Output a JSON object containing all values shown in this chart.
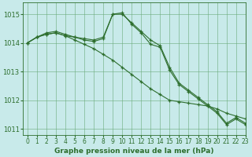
{
  "background_color": "#c8eaea",
  "grid_color": "#6aaa7a",
  "line_color": "#2d6e2d",
  "title": "Graphe pression niveau de la mer (hPa)",
  "xlim": [
    -0.5,
    23
  ],
  "ylim": [
    1010.8,
    1015.4
  ],
  "yticks": [
    1011,
    1012,
    1013,
    1014,
    1015
  ],
  "xticks": [
    0,
    1,
    2,
    3,
    4,
    5,
    6,
    7,
    8,
    9,
    10,
    11,
    12,
    13,
    14,
    15,
    16,
    17,
    18,
    19,
    20,
    21,
    22,
    23
  ],
  "series": [
    [
      1014.0,
      1014.2,
      1014.3,
      1014.35,
      1014.25,
      1014.2,
      1014.15,
      1014.1,
      1014.2,
      1015.0,
      1015.0,
      1014.7,
      1014.4,
      1014.1,
      1013.9,
      1013.15,
      1012.6,
      1012.35,
      1012.1,
      1011.85,
      1011.6,
      1011.2,
      1011.4,
      1011.2
    ],
    [
      1014.0,
      1014.2,
      1014.3,
      1014.35,
      1014.25,
      1014.1,
      1013.95,
      1013.8,
      1013.6,
      1013.4,
      1013.15,
      1012.9,
      1012.65,
      1012.4,
      1012.2,
      1012.0,
      1011.95,
      1011.9,
      1011.85,
      1011.8,
      1011.7,
      1011.55,
      1011.45,
      1011.35
    ],
    [
      1014.0,
      1014.2,
      1014.35,
      1014.4,
      1014.3,
      1014.2,
      1014.1,
      1014.05,
      1014.15,
      1015.0,
      1015.05,
      1014.65,
      1014.35,
      1013.95,
      1013.85,
      1013.05,
      1012.55,
      1012.3,
      1012.05,
      1011.8,
      1011.55,
      1011.15,
      1011.35,
      1011.15
    ]
  ]
}
